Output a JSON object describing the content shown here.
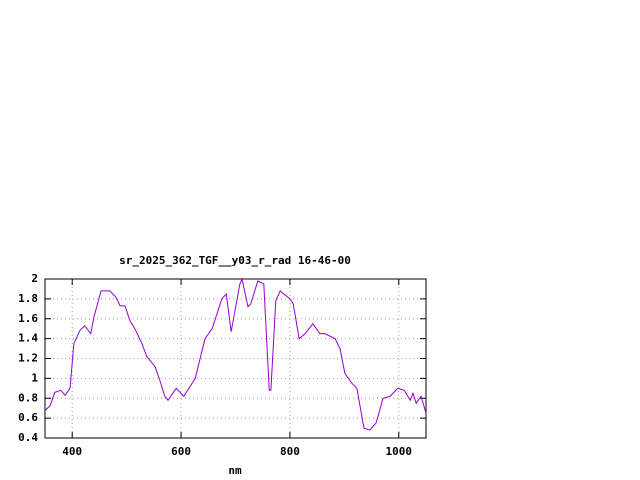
{
  "chart_data": {
    "type": "line",
    "title": "sr_2025_362_TGF__y03_r_rad 16-46-00",
    "xlabel": "nm",
    "x": [
      350,
      359,
      368,
      379,
      387,
      396,
      403,
      414,
      423,
      434,
      440,
      453,
      469,
      480,
      488,
      497,
      506,
      515,
      528,
      537,
      552,
      561,
      570,
      576,
      591,
      605,
      626,
      644,
      657,
      675,
      683,
      692,
      708,
      712,
      723,
      728,
      741,
      752,
      762,
      765,
      774,
      782,
      800,
      806,
      817,
      828,
      842,
      855,
      864,
      883,
      892,
      901,
      914,
      923,
      936,
      947,
      958,
      962,
      971,
      984,
      998,
      1010,
      1021,
      1026,
      1032,
      1041,
      1050
    ],
    "values": [
      0.68,
      0.72,
      0.86,
      0.88,
      0.83,
      0.9,
      1.35,
      1.48,
      1.53,
      1.45,
      1.62,
      1.88,
      1.88,
      1.82,
      1.73,
      1.73,
      1.58,
      1.5,
      1.35,
      1.22,
      1.12,
      0.98,
      0.82,
      0.78,
      0.9,
      0.82,
      1.0,
      1.4,
      1.5,
      1.8,
      1.85,
      1.47,
      1.95,
      2.0,
      1.72,
      1.75,
      1.98,
      1.95,
      0.88,
      0.88,
      1.78,
      1.88,
      1.8,
      1.75,
      1.4,
      1.45,
      1.55,
      1.45,
      1.45,
      1.4,
      1.3,
      1.05,
      0.95,
      0.9,
      0.5,
      0.48,
      0.55,
      0.62,
      0.8,
      0.82,
      0.9,
      0.88,
      0.78,
      0.85,
      0.75,
      0.82,
      0.65
    ],
    "color": "#9400d3",
    "xlim": [
      350,
      1050
    ],
    "xticks": [
      400,
      600,
      800,
      1000
    ],
    "ylim": [
      0.4,
      2
    ],
    "yticks": [
      0.4,
      0.6,
      0.8,
      1,
      1.2,
      1.4,
      1.6,
      1.8,
      2
    ],
    "grid": true
  }
}
